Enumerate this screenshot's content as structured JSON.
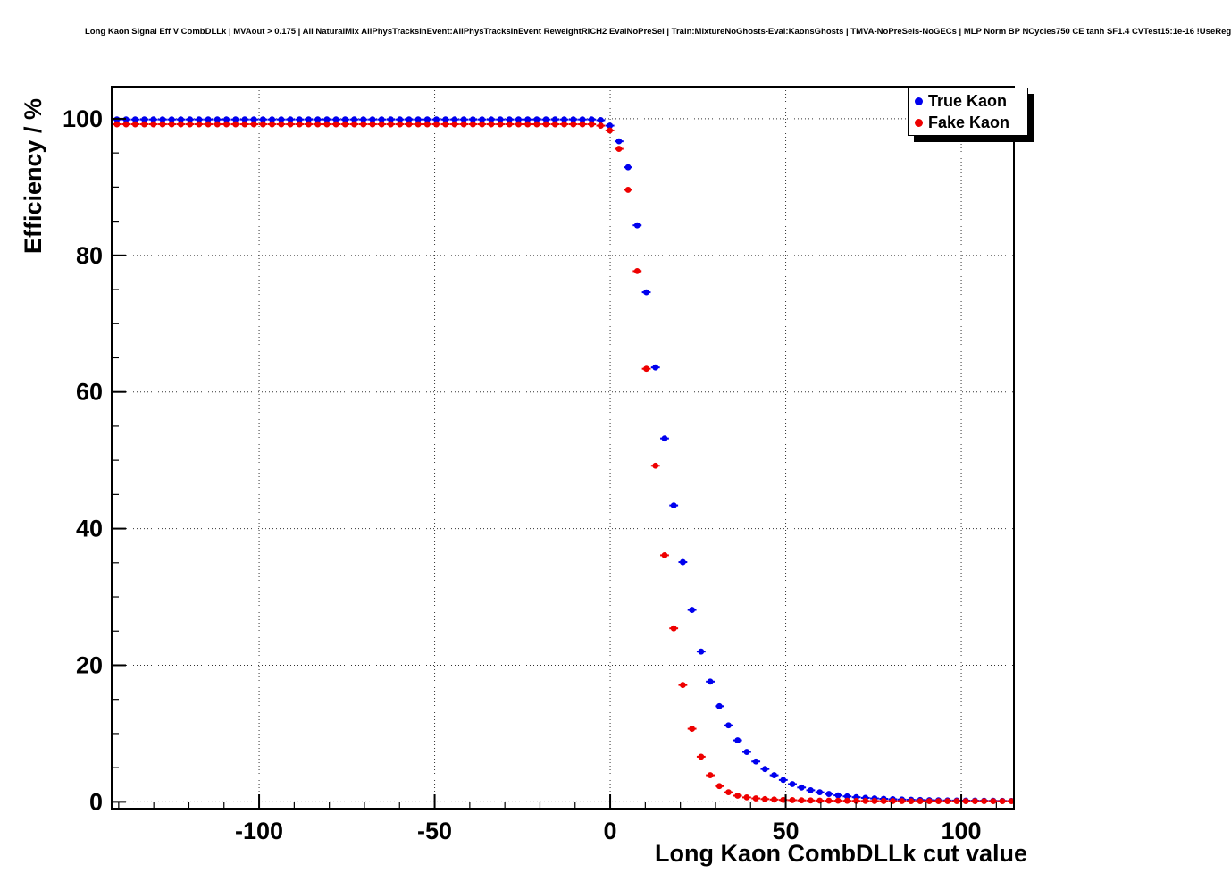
{
  "title": "Long Kaon Signal Eff V CombDLLk | MVAout > 0.175 | All NaturalMix AllPhysTracksInEvent:AllPhysTracksInEvent ReweightRICH2 EvalNoPreSel | Train:MixtureNoGhosts-Eval:KaonsGhosts | TMVA-NoPreSels-NoGECs | MLP Norm BP NCycles750 CE tanh SF1.4 CVTest15:1e-16 !UseReg",
  "legend": {
    "entries": [
      {
        "label": "True Kaon",
        "color": "#0000ee"
      },
      {
        "label": "Fake Kaon",
        "color": "#ee0000"
      }
    ]
  },
  "chart_data": {
    "type": "scatter",
    "title": "Long Kaon Signal Eff V CombDLLk",
    "xlabel": "Long Kaon CombDLLk cut value",
    "ylabel": "Efficiency / %",
    "xlim": [
      -142,
      115
    ],
    "ylim": [
      -1,
      104.7
    ],
    "grid": "dotted",
    "legend_position": "top-right",
    "marker": "filled-circle-with-x-error-bar",
    "error_bar_halfwidth": 1.25,
    "x_ticks": {
      "major": [
        -100,
        -50,
        0,
        50,
        100
      ],
      "labels": [
        "-100",
        "-50",
        "0",
        "50",
        "100"
      ],
      "minor_step": 10
    },
    "y_ticks": {
      "major": [
        0,
        20,
        40,
        60,
        80,
        100
      ],
      "labels": [
        "0",
        "20",
        "40",
        "60",
        "80",
        "100"
      ],
      "minor_step": 5
    },
    "x": [
      -140.5,
      -137.9,
      -135.3,
      -132.7,
      -130.1,
      -127.5,
      -124.9,
      -122.3,
      -119.7,
      -117.1,
      -114.5,
      -111.9,
      -109.3,
      -106.7,
      -104.1,
      -101.5,
      -98.9,
      -96.3,
      -93.7,
      -91.1,
      -88.5,
      -85.9,
      -83.3,
      -80.7,
      -78.1,
      -75.5,
      -72.9,
      -70.3,
      -67.7,
      -65.1,
      -62.5,
      -59.9,
      -57.3,
      -54.7,
      -52.1,
      -49.5,
      -46.9,
      -44.3,
      -41.7,
      -39.1,
      -36.5,
      -33.9,
      -31.3,
      -28.7,
      -26.1,
      -23.5,
      -20.9,
      -18.3,
      -15.7,
      -13.1,
      -10.5,
      -7.9,
      -5.3,
      -2.7,
      -0.1,
      2.5,
      5.1,
      7.7,
      10.3,
      12.9,
      15.5,
      18.1,
      20.7,
      23.3,
      25.9,
      28.5,
      31.1,
      33.7,
      36.3,
      38.9,
      41.5,
      44.1,
      46.7,
      49.3,
      51.9,
      54.5,
      57.1,
      59.7,
      62.3,
      64.9,
      67.5,
      70.1,
      72.7,
      75.3,
      77.9,
      80.5,
      83.1,
      85.7,
      88.3,
      90.9,
      93.5,
      96.1,
      98.7,
      101.3,
      103.9,
      106.5,
      109.1,
      111.7,
      114.3
    ],
    "series": [
      {
        "name": "True Kaon",
        "color": "#0000ee",
        "y": [
          99.9,
          99.9,
          99.9,
          99.9,
          99.9,
          99.9,
          99.9,
          99.9,
          99.9,
          99.9,
          99.9,
          99.9,
          99.9,
          99.9,
          99.9,
          99.9,
          99.9,
          99.9,
          99.9,
          99.9,
          99.9,
          99.9,
          99.9,
          99.9,
          99.9,
          99.9,
          99.9,
          99.9,
          99.9,
          99.9,
          99.9,
          99.9,
          99.9,
          99.9,
          99.9,
          99.9,
          99.9,
          99.9,
          99.9,
          99.9,
          99.9,
          99.9,
          99.9,
          99.9,
          99.9,
          99.9,
          99.9,
          99.9,
          99.9,
          99.9,
          99.9,
          99.9,
          99.9,
          99.8,
          99.0,
          96.7,
          92.9,
          84.4,
          74.6,
          63.6,
          53.2,
          43.4,
          35.1,
          28.1,
          22.0,
          17.6,
          14.0,
          11.2,
          9.0,
          7.3,
          5.9,
          4.8,
          3.9,
          3.2,
          2.6,
          2.1,
          1.7,
          1.4,
          1.15,
          0.95,
          0.8,
          0.68,
          0.58,
          0.5,
          0.44,
          0.38,
          0.33,
          0.3,
          0.27,
          0.24,
          0.22,
          0.2,
          0.19,
          0.18,
          0.17,
          0.16,
          0.15,
          0.14,
          0.13
        ]
      },
      {
        "name": "Fake Kaon",
        "color": "#ee0000",
        "y": [
          99.2,
          99.2,
          99.2,
          99.2,
          99.2,
          99.2,
          99.2,
          99.2,
          99.2,
          99.2,
          99.2,
          99.2,
          99.2,
          99.2,
          99.2,
          99.2,
          99.2,
          99.2,
          99.2,
          99.2,
          99.2,
          99.2,
          99.2,
          99.2,
          99.2,
          99.2,
          99.2,
          99.2,
          99.2,
          99.2,
          99.2,
          99.2,
          99.2,
          99.2,
          99.2,
          99.2,
          99.2,
          99.2,
          99.2,
          99.2,
          99.2,
          99.2,
          99.2,
          99.2,
          99.2,
          99.2,
          99.2,
          99.2,
          99.2,
          99.2,
          99.2,
          99.2,
          99.2,
          99.0,
          98.3,
          95.6,
          89.6,
          77.7,
          63.4,
          49.2,
          36.1,
          25.4,
          17.1,
          10.7,
          6.6,
          3.9,
          2.3,
          1.4,
          0.9,
          0.65,
          0.5,
          0.4,
          0.33,
          0.28,
          0.25,
          0.22,
          0.2,
          0.18,
          0.17,
          0.16,
          0.15,
          0.14,
          0.13,
          0.12,
          0.12,
          0.11,
          0.11,
          0.1,
          0.1,
          0.1,
          0.1,
          0.1,
          0.1,
          0.1,
          0.1,
          0.1,
          0.1,
          0.1,
          0.1
        ]
      }
    ]
  }
}
